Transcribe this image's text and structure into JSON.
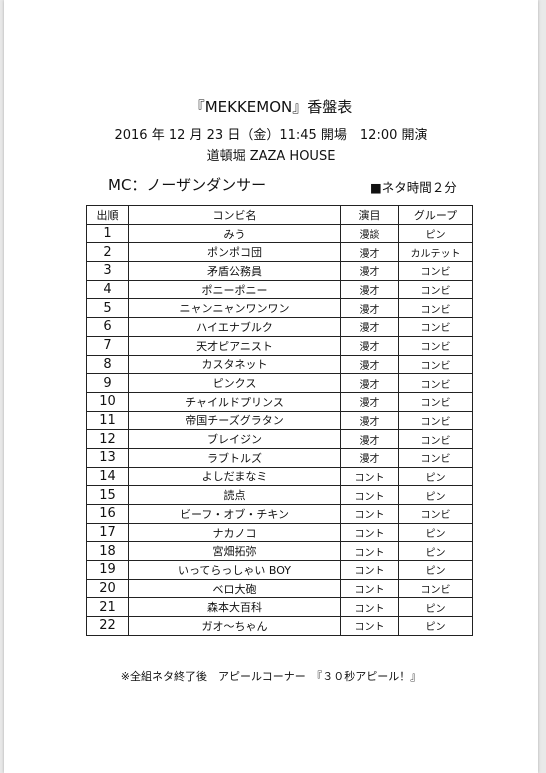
{
  "title": "『MEKKEMON』香盤表",
  "date_line": "2016 年 12 月 23 日（金）11:45 開場　12:00 開演",
  "venue": "道頓堀 ZAZA HOUSE",
  "mc": "MC：ノーザンダンサー",
  "neta_time": "■ネタ時間２分",
  "headers": [
    "出順",
    "コンビ名",
    "演目",
    "グループ"
  ],
  "rows": [
    {
      "num": "1",
      "name": "みう",
      "type": "漫談",
      "group": "ピン"
    },
    {
      "num": "2",
      "name": "ポンポコ団",
      "type": "漫才",
      "group": "カルテット"
    },
    {
      "num": "3",
      "name": "矛盾公務員",
      "type": "漫才",
      "group": "コンビ"
    },
    {
      "num": "4",
      "name": "ポニーポニー",
      "type": "漫才",
      "group": "コンビ"
    },
    {
      "num": "5",
      "name": "ニャンニャンワンワン",
      "type": "漫才",
      "group": "コンビ"
    },
    {
      "num": "6",
      "name": "ハイエナブルク",
      "type": "漫才",
      "group": "コンビ"
    },
    {
      "num": "7",
      "name": "天才ピアニスト",
      "type": "漫才",
      "group": "コンビ"
    },
    {
      "num": "8",
      "name": "カスタネット",
      "type": "漫才",
      "group": "コンビ"
    },
    {
      "num": "9",
      "name": "ピンクス",
      "type": "漫才",
      "group": "コンビ"
    },
    {
      "num": "10",
      "name": "チャイルドプリンス",
      "type": "漫才",
      "group": "コンビ"
    },
    {
      "num": "11",
      "name": "帝国チーズグラタン",
      "type": "漫才",
      "group": "コンビ"
    },
    {
      "num": "12",
      "name": "ブレイジン",
      "type": "漫才",
      "group": "コンビ"
    },
    {
      "num": "13",
      "name": "ラブトルズ",
      "type": "漫才",
      "group": "コンビ"
    },
    {
      "num": "14",
      "name": "よしだまなミ",
      "type": "コント",
      "group": "ピン"
    },
    {
      "num": "15",
      "name": "読点",
      "type": "コント",
      "group": "ピン"
    },
    {
      "num": "16",
      "name": "ビーフ・オブ・チキン",
      "type": "コント",
      "group": "コンビ"
    },
    {
      "num": "17",
      "name": "ナカノコ",
      "type": "コント",
      "group": "ピン"
    },
    {
      "num": "18",
      "name": "宮畑拓弥",
      "type": "コント",
      "group": "ピン"
    },
    {
      "num": "19",
      "name": "いってらっしゃい BOY",
      "type": "コント",
      "group": "ピン"
    },
    {
      "num": "20",
      "name": "ベロ大砲",
      "type": "コント",
      "group": "コンビ"
    },
    {
      "num": "21",
      "name": "森本大百科",
      "type": "コント",
      "group": "ピン"
    },
    {
      "num": "22",
      "name": "ガオ～ちゃん",
      "type": "コント",
      "group": "ピン"
    }
  ],
  "footer": "※全組ネタ終了後　アピールコーナー　『３０秒アピール！』"
}
